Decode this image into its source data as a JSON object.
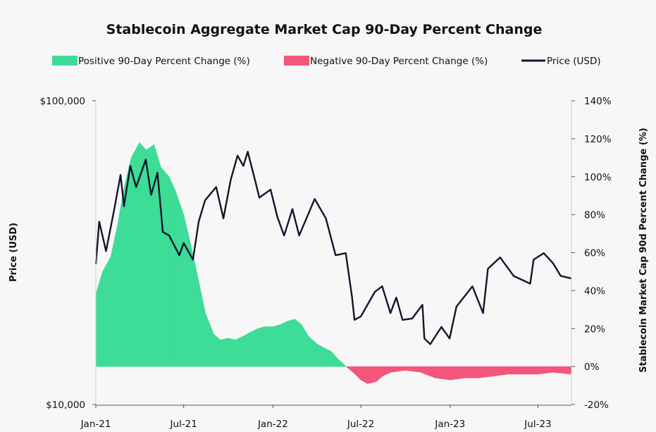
{
  "chart_data": {
    "type": "area",
    "title": "Stablecoin Aggregate Market Cap 90-Day Percent Change",
    "legend": [
      {
        "label": "Positive 90-Day Percent Change (%)",
        "color": "#3ddc97",
        "kind": "area"
      },
      {
        "label": "Negative 90-Day Percent Change (%)",
        "color": "#f3567a",
        "kind": "area"
      },
      {
        "label": "Price (USD)",
        "color": "#14142b",
        "kind": "line"
      }
    ],
    "legend_position": "top",
    "grid": false,
    "xlabel": "",
    "x_ticks": [
      "Jan-21",
      "Jul-21",
      "Jan-22",
      "Jul-22",
      "Jan-23",
      "Jul-23"
    ],
    "x_range": [
      "2021-01-01",
      "2023-09-08"
    ],
    "y_left": {
      "label": "Price (USD)",
      "scale": "log",
      "range": [
        10000,
        100000
      ],
      "ticks": [
        "$10,000",
        "$100,000"
      ]
    },
    "y_right": {
      "label": "Stablecoin Market Cap 90d Percent Change (%)",
      "range": [
        -20,
        140
      ],
      "ticks": [
        "-20%",
        "0%",
        "20%",
        "40%",
        "60%",
        "80%",
        "100%",
        "120%",
        "140%"
      ]
    },
    "percent_change_series": [
      [
        "2021-01-01",
        38
      ],
      [
        "2021-01-15",
        50
      ],
      [
        "2021-02-01",
        58
      ],
      [
        "2021-02-15",
        75
      ],
      [
        "2021-03-01",
        95
      ],
      [
        "2021-03-15",
        110
      ],
      [
        "2021-04-01",
        118
      ],
      [
        "2021-04-15",
        114
      ],
      [
        "2021-05-01",
        117
      ],
      [
        "2021-05-15",
        105
      ],
      [
        "2021-06-01",
        100
      ],
      [
        "2021-06-15",
        92
      ],
      [
        "2021-07-01",
        80
      ],
      [
        "2021-07-15",
        65
      ],
      [
        "2021-08-01",
        45
      ],
      [
        "2021-08-15",
        28
      ],
      [
        "2021-09-01",
        17
      ],
      [
        "2021-09-15",
        14
      ],
      [
        "2021-10-01",
        15
      ],
      [
        "2021-10-15",
        14
      ],
      [
        "2021-11-01",
        16
      ],
      [
        "2021-11-15",
        18
      ],
      [
        "2021-12-01",
        20
      ],
      [
        "2021-12-15",
        21
      ],
      [
        "2022-01-01",
        21
      ],
      [
        "2022-01-15",
        22
      ],
      [
        "2022-02-01",
        24
      ],
      [
        "2022-02-15",
        25
      ],
      [
        "2022-03-01",
        22
      ],
      [
        "2022-03-15",
        16
      ],
      [
        "2022-04-01",
        12
      ],
      [
        "2022-04-15",
        10
      ],
      [
        "2022-05-01",
        8
      ],
      [
        "2022-05-15",
        4
      ],
      [
        "2022-06-01",
        0
      ],
      [
        "2022-06-15",
        -3
      ],
      [
        "2022-07-01",
        -7
      ],
      [
        "2022-07-15",
        -9
      ],
      [
        "2022-08-01",
        -8
      ],
      [
        "2022-08-15",
        -5
      ],
      [
        "2022-09-01",
        -3
      ],
      [
        "2022-10-01",
        -2
      ],
      [
        "2022-11-01",
        -3
      ],
      [
        "2022-12-01",
        -6
      ],
      [
        "2023-01-01",
        -7
      ],
      [
        "2023-02-01",
        -6
      ],
      [
        "2023-03-01",
        -6
      ],
      [
        "2023-04-01",
        -5
      ],
      [
        "2023-05-01",
        -4
      ],
      [
        "2023-06-01",
        -4
      ],
      [
        "2023-07-01",
        -4
      ],
      [
        "2023-08-01",
        -3
      ],
      [
        "2023-09-08",
        -4
      ]
    ],
    "price_series": [
      [
        "2021-01-01",
        29000
      ],
      [
        "2021-01-08",
        40000
      ],
      [
        "2021-01-22",
        32000
      ],
      [
        "2021-02-08",
        44000
      ],
      [
        "2021-02-21",
        57000
      ],
      [
        "2021-02-28",
        45000
      ],
      [
        "2021-03-13",
        61000
      ],
      [
        "2021-03-25",
        52000
      ],
      [
        "2021-04-14",
        64000
      ],
      [
        "2021-04-25",
        49000
      ],
      [
        "2021-05-08",
        58000
      ],
      [
        "2021-05-19",
        37000
      ],
      [
        "2021-06-01",
        36000
      ],
      [
        "2021-06-22",
        31000
      ],
      [
        "2021-07-01",
        34000
      ],
      [
        "2021-07-20",
        30000
      ],
      [
        "2021-08-01",
        40000
      ],
      [
        "2021-08-14",
        47000
      ],
      [
        "2021-09-06",
        52000
      ],
      [
        "2021-09-21",
        41000
      ],
      [
        "2021-10-06",
        55000
      ],
      [
        "2021-10-20",
        66000
      ],
      [
        "2021-11-01",
        61000
      ],
      [
        "2021-11-10",
        68000
      ],
      [
        "2021-11-26",
        54000
      ],
      [
        "2021-12-04",
        48000
      ],
      [
        "2021-12-27",
        51000
      ],
      [
        "2022-01-10",
        41500
      ],
      [
        "2022-01-24",
        36000
      ],
      [
        "2022-02-10",
        44000
      ],
      [
        "2022-02-24",
        36000
      ],
      [
        "2022-03-28",
        47500
      ],
      [
        "2022-04-20",
        41000
      ],
      [
        "2022-05-10",
        31000
      ],
      [
        "2022-05-31",
        31500
      ],
      [
        "2022-06-13",
        22500
      ],
      [
        "2022-06-18",
        19000
      ],
      [
        "2022-07-01",
        19500
      ],
      [
        "2022-07-30",
        23500
      ],
      [
        "2022-08-14",
        24500
      ],
      [
        "2022-08-31",
        20000
      ],
      [
        "2022-09-12",
        22500
      ],
      [
        "2022-09-25",
        19000
      ],
      [
        "2022-10-15",
        19200
      ],
      [
        "2022-11-05",
        21300
      ],
      [
        "2022-11-09",
        16500
      ],
      [
        "2022-11-21",
        15800
      ],
      [
        "2022-12-14",
        18000
      ],
      [
        "2022-12-31",
        16500
      ],
      [
        "2023-01-14",
        21000
      ],
      [
        "2023-02-16",
        24500
      ],
      [
        "2023-03-10",
        20000
      ],
      [
        "2023-03-20",
        28000
      ],
      [
        "2023-04-14",
        30500
      ],
      [
        "2023-05-12",
        26500
      ],
      [
        "2023-06-15",
        25000
      ],
      [
        "2023-06-22",
        30000
      ],
      [
        "2023-07-13",
        31500
      ],
      [
        "2023-08-01",
        29200
      ],
      [
        "2023-08-17",
        26500
      ],
      [
        "2023-09-08",
        26000
      ]
    ]
  },
  "colors": {
    "positive": "#3ddc97",
    "negative": "#f3567a",
    "price": "#14142b",
    "background": "#f7f7f7",
    "axis": "#555555"
  }
}
